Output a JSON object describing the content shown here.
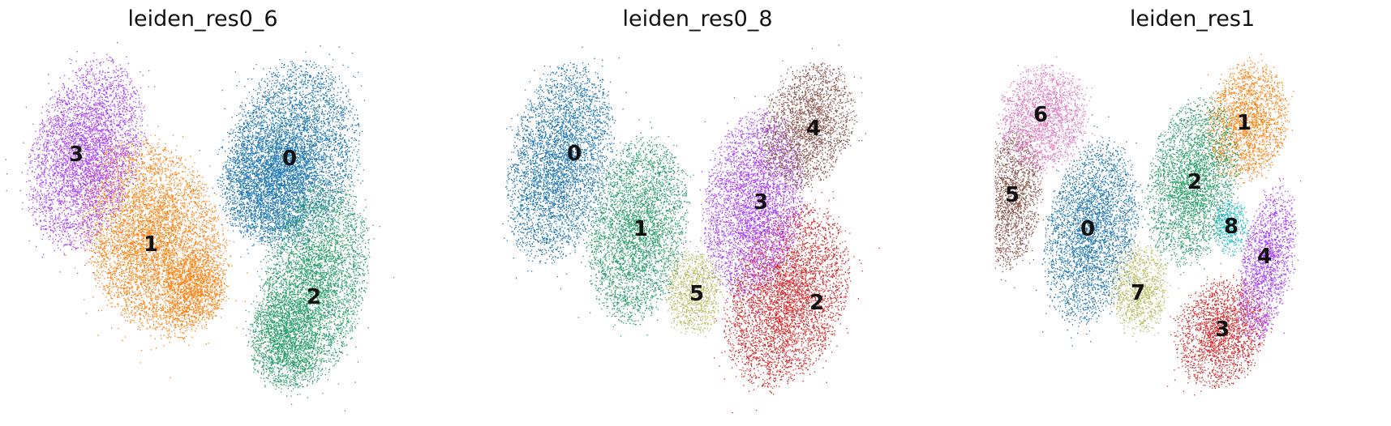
{
  "chart_data": [
    {
      "type": "scatter",
      "title": "leiden_res0_6",
      "legend": "on-data",
      "clusters": [
        {
          "label": "0",
          "color": "#1f77b4"
        },
        {
          "label": "1",
          "color": "#ff7f0e"
        },
        {
          "label": "2",
          "color": "#279e68"
        },
        {
          "label": "3",
          "color": "#aa40fc"
        }
      ]
    },
    {
      "type": "scatter",
      "title": "leiden_res0_8",
      "legend": "on-data",
      "clusters": [
        {
          "label": "0",
          "color": "#1f77b4"
        },
        {
          "label": "1",
          "color": "#279e68"
        },
        {
          "label": "2",
          "color": "#d62728"
        },
        {
          "label": "3",
          "color": "#aa40fc"
        },
        {
          "label": "4",
          "color": "#8c564b"
        },
        {
          "label": "5",
          "color": "#b5bd61"
        }
      ]
    },
    {
      "type": "scatter",
      "title": "leiden_res1",
      "legend": "on-data",
      "clusters": [
        {
          "label": "0",
          "color": "#1f77b4"
        },
        {
          "label": "1",
          "color": "#ff7f0e"
        },
        {
          "label": "2",
          "color": "#279e68"
        },
        {
          "label": "3",
          "color": "#d62728"
        },
        {
          "label": "4",
          "color": "#aa40fc"
        },
        {
          "label": "5",
          "color": "#8c564b"
        },
        {
          "label": "6",
          "color": "#e377c2"
        },
        {
          "label": "7",
          "color": "#b5bd61"
        },
        {
          "label": "8",
          "color": "#17becf"
        }
      ]
    }
  ]
}
